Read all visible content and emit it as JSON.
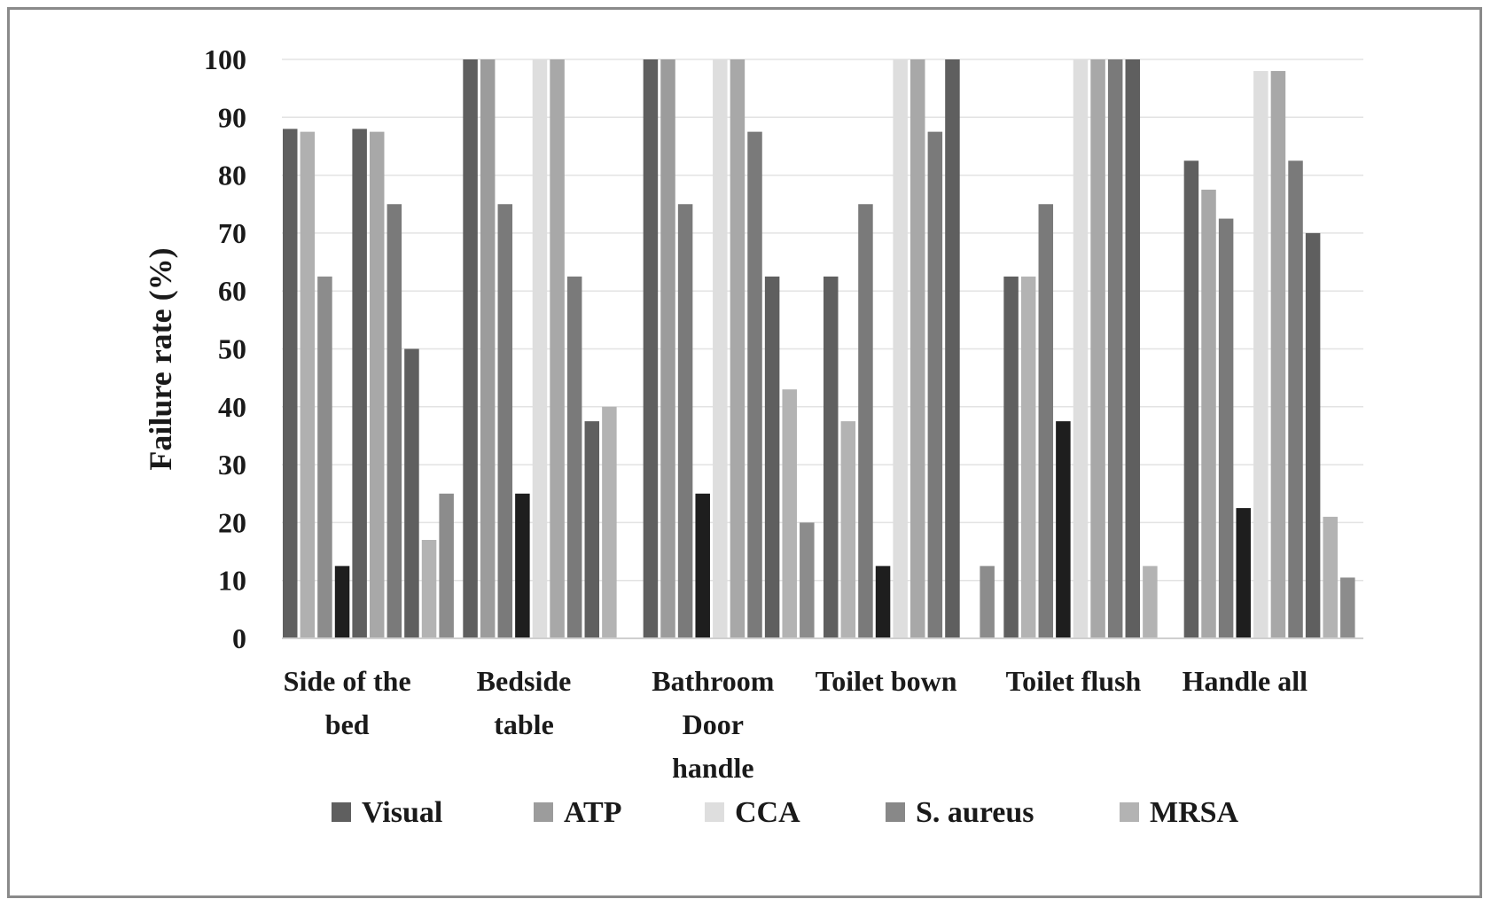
{
  "chart_data": {
    "type": "bar",
    "ylabel": "Failure rate (%)",
    "xlabel": "",
    "ylim": [
      0,
      100
    ],
    "yticks": [
      0,
      10,
      20,
      30,
      40,
      50,
      60,
      70,
      80,
      90,
      100
    ],
    "grid": true,
    "legend_placement": "bottom",
    "categories": [
      [
        "Side of the",
        "bed"
      ],
      [
        "Bedside",
        "table"
      ],
      [
        "Bathroom",
        "Door",
        "handle"
      ],
      [
        "Toilet bown"
      ],
      [
        "Toilet flush"
      ],
      [
        "Handle all"
      ]
    ],
    "legend": [
      {
        "label": "Visual",
        "color": "#5f5f5f"
      },
      {
        "label": "ATP",
        "color": "#9c9c9c"
      },
      {
        "label": "CCA",
        "color": "#dedede"
      },
      {
        "label": "S. aureus",
        "color": "#888888"
      },
      {
        "label": "MRSA",
        "color": "#b3b3b3"
      }
    ],
    "bars": [
      [
        {
          "value": 88,
          "color": "#5f5f5f"
        },
        {
          "value": 87.5,
          "color": "#b0b0b0"
        },
        {
          "value": 62.5,
          "color": "#8c8c8c"
        },
        {
          "value": 12.5,
          "color": "#1e1e1e"
        },
        {
          "value": 88,
          "color": "#5f5f5f"
        },
        {
          "value": 87.5,
          "color": "#a8a8a8"
        },
        {
          "value": 75,
          "color": "#7a7a7a"
        },
        {
          "value": 50,
          "color": "#5f5f5f"
        },
        {
          "value": 17,
          "color": "#b3b3b3"
        },
        {
          "value": 25,
          "color": "#8c8c8c"
        }
      ],
      [
        {
          "value": 100,
          "color": "#5f5f5f"
        },
        {
          "value": 100,
          "color": "#9c9c9c"
        },
        {
          "value": 75,
          "color": "#7a7a7a"
        },
        {
          "value": 25,
          "color": "#1e1e1e"
        },
        {
          "value": 100,
          "color": "#dedede"
        },
        {
          "value": 100,
          "color": "#a8a8a8"
        },
        {
          "value": 62.5,
          "color": "#7a7a7a"
        },
        {
          "value": 37.5,
          "color": "#5f5f5f"
        },
        {
          "value": 40,
          "color": "#b3b3b3"
        }
      ],
      [
        {
          "value": 100,
          "color": "#5f5f5f"
        },
        {
          "value": 100,
          "color": "#9c9c9c"
        },
        {
          "value": 75,
          "color": "#7a7a7a"
        },
        {
          "value": 25,
          "color": "#1e1e1e"
        },
        {
          "value": 100,
          "color": "#dedede"
        },
        {
          "value": 100,
          "color": "#a8a8a8"
        },
        {
          "value": 87.5,
          "color": "#7a7a7a"
        },
        {
          "value": 62.5,
          "color": "#5f5f5f"
        },
        {
          "value": 43,
          "color": "#b3b3b3"
        },
        {
          "value": 20,
          "color": "#8c8c8c"
        }
      ],
      [
        {
          "value": 62.5,
          "color": "#5f5f5f"
        },
        {
          "value": 37.5,
          "color": "#b3b3b3"
        },
        {
          "value": 75,
          "color": "#7a7a7a"
        },
        {
          "value": 12.5,
          "color": "#1e1e1e"
        },
        {
          "value": 100,
          "color": "#dedede"
        },
        {
          "value": 100,
          "color": "#a8a8a8"
        },
        {
          "value": 87.5,
          "color": "#7a7a7a"
        },
        {
          "value": 100,
          "color": "#5f5f5f"
        },
        {
          "value": 0,
          "color": "#b3b3b3"
        },
        {
          "value": 12.5,
          "color": "#8c8c8c"
        }
      ],
      [
        {
          "value": 62.5,
          "color": "#5f5f5f"
        },
        {
          "value": 62.5,
          "color": "#b3b3b3"
        },
        {
          "value": 75,
          "color": "#7a7a7a"
        },
        {
          "value": 37.5,
          "color": "#1e1e1e"
        },
        {
          "value": 100,
          "color": "#dedede"
        },
        {
          "value": 100,
          "color": "#a8a8a8"
        },
        {
          "value": 100,
          "color": "#7a7a7a"
        },
        {
          "value": 100,
          "color": "#5f5f5f"
        },
        {
          "value": 12.5,
          "color": "#b3b3b3"
        }
      ],
      [
        {
          "value": 82.5,
          "color": "#5f5f5f"
        },
        {
          "value": 77.5,
          "color": "#a8a8a8"
        },
        {
          "value": 72.5,
          "color": "#7a7a7a"
        },
        {
          "value": 22.5,
          "color": "#1e1e1e"
        },
        {
          "value": 98,
          "color": "#dedede"
        },
        {
          "value": 98,
          "color": "#a8a8a8"
        },
        {
          "value": 82.5,
          "color": "#7a7a7a"
        },
        {
          "value": 70,
          "color": "#5f5f5f"
        },
        {
          "value": 21,
          "color": "#b3b3b3"
        },
        {
          "value": 10.5,
          "color": "#8c8c8c"
        }
      ]
    ]
  }
}
